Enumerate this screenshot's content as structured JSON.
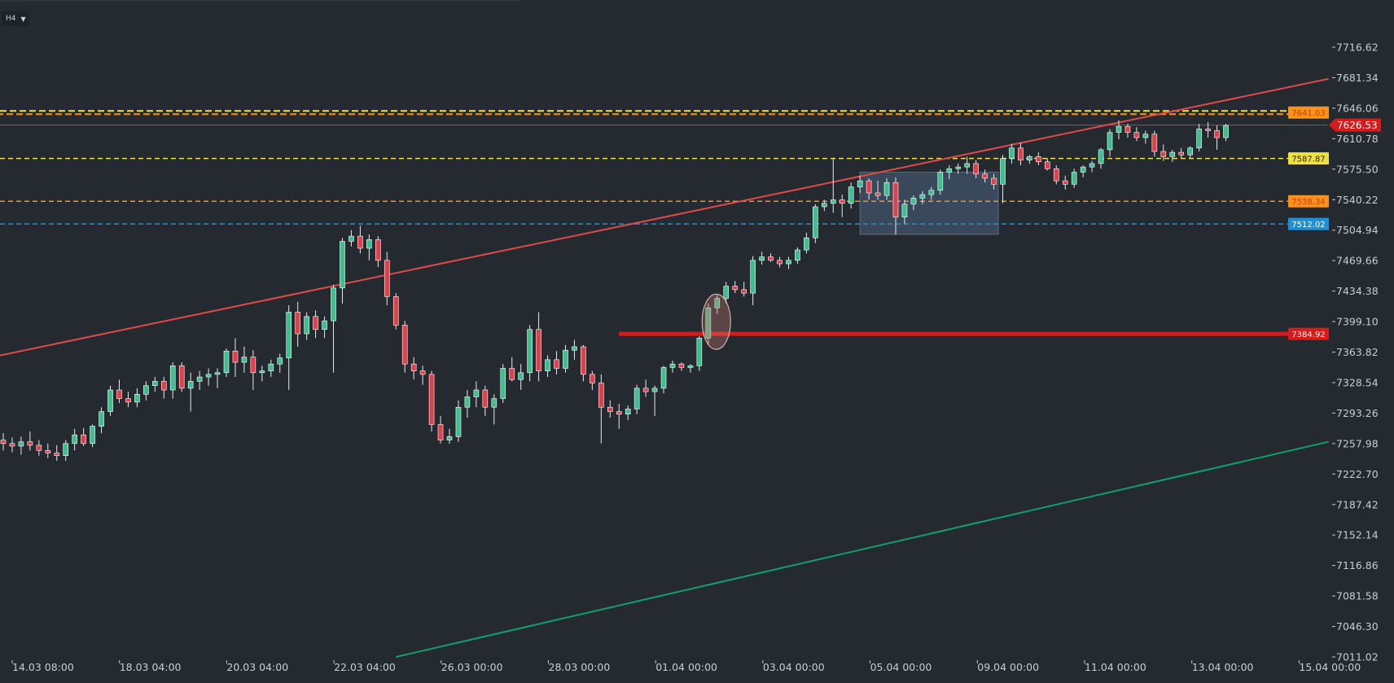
{
  "toolbar": {
    "timeframe": "H4"
  },
  "colors": {
    "background": "#242a30",
    "bull": "#3fbf8f",
    "bear": "#e0404a",
    "resistance_trend": "#e04a4a",
    "support_trend": "#12a06a",
    "orange": "#f7931a",
    "yellow": "#f0e040",
    "blue": "#1e90d8",
    "red_level": "#d41c1c"
  },
  "chart_data": {
    "type": "candlestick",
    "timeframe": "H4",
    "y_axis": {
      "range": [
        7011.02,
        7735.0
      ],
      "ticks": [
        "7716.62",
        "7681.34",
        "7646.06",
        "7610.78",
        "7575.50",
        "7540.22",
        "7504.94",
        "7469.66",
        "7434.38",
        "7399.10",
        "7363.82",
        "7328.54",
        "7293.26",
        "7257.98",
        "7222.70",
        "7187.42",
        "7152.14",
        "7116.86",
        "7081.58",
        "7046.30",
        "7011.02"
      ]
    },
    "x_axis": {
      "ticks": [
        "14.03 08:00",
        "18.03 04:00",
        "20.03 04:00",
        "22.03 04:00",
        "26.03 00:00",
        "28.03 00:00",
        "01.04 00:00",
        "03.04 00:00",
        "05.04 00:00",
        "09.04 00:00",
        "11.04 00:00",
        "13.04 00:00",
        "15.04 00:00"
      ]
    },
    "current_price": "7626.53",
    "levels": [
      {
        "label": "7641.03",
        "value": 7641.03,
        "color": "#f7931a",
        "style": "dashed-double"
      },
      {
        "label": "7587.87",
        "value": 7587.87,
        "color": "#f0e040",
        "style": "dashed"
      },
      {
        "label": "7538.34",
        "value": 7538.34,
        "color": "#f7931a",
        "style": "dashed"
      },
      {
        "label": "7512.02",
        "value": 7512.02,
        "color": "#1e90d8",
        "style": "dashed"
      },
      {
        "label": "7384.92",
        "value": 7384.92,
        "color": "#d41c1c",
        "style": "solid-thick",
        "from_bar": 69
      }
    ],
    "trendlines": [
      {
        "name": "resistance",
        "color": "#e04a4a",
        "from": [
          -5,
          7350
        ],
        "to": [
          148.5,
          7680
        ]
      },
      {
        "name": "support",
        "color": "#12a06a",
        "from": [
          44,
          7011.02
        ],
        "to": [
          148.5,
          7260
        ]
      }
    ],
    "candles": [
      [
        7262,
        7270,
        7250,
        7258
      ],
      [
        7258,
        7265,
        7248,
        7255
      ],
      [
        7255,
        7266,
        7245,
        7260
      ],
      [
        7260,
        7272,
        7250,
        7256
      ],
      [
        7256,
        7262,
        7244,
        7250
      ],
      [
        7250,
        7258,
        7241,
        7247
      ],
      [
        7247,
        7256,
        7238,
        7244
      ],
      [
        7244,
        7262,
        7238,
        7258
      ],
      [
        7258,
        7275,
        7250,
        7268
      ],
      [
        7268,
        7276,
        7255,
        7258
      ],
      [
        7258,
        7280,
        7254,
        7278
      ],
      [
        7278,
        7300,
        7270,
        7295
      ],
      [
        7295,
        7325,
        7290,
        7320
      ],
      [
        7320,
        7332,
        7305,
        7310
      ],
      [
        7310,
        7318,
        7300,
        7306
      ],
      [
        7306,
        7322,
        7300,
        7315
      ],
      [
        7315,
        7330,
        7308,
        7325
      ],
      [
        7325,
        7335,
        7318,
        7330
      ],
      [
        7330,
        7335,
        7310,
        7320
      ],
      [
        7320,
        7352,
        7310,
        7348
      ],
      [
        7348,
        7352,
        7318,
        7322
      ],
      [
        7322,
        7340,
        7295,
        7330
      ],
      [
        7330,
        7342,
        7320,
        7335
      ],
      [
        7335,
        7345,
        7325,
        7338
      ],
      [
        7338,
        7345,
        7322,
        7340
      ],
      [
        7340,
        7368,
        7335,
        7365
      ],
      [
        7365,
        7380,
        7335,
        7352
      ],
      [
        7352,
        7370,
        7340,
        7358
      ],
      [
        7358,
        7366,
        7320,
        7340
      ],
      [
        7340,
        7348,
        7330,
        7342
      ],
      [
        7342,
        7355,
        7335,
        7350
      ],
      [
        7350,
        7362,
        7340,
        7357
      ],
      [
        7357,
        7418,
        7320,
        7410
      ],
      [
        7410,
        7422,
        7370,
        7385
      ],
      [
        7385,
        7410,
        7378,
        7405
      ],
      [
        7405,
        7412,
        7380,
        7390
      ],
      [
        7390,
        7405,
        7380,
        7400
      ],
      [
        7400,
        7442,
        7340,
        7438
      ],
      [
        7438,
        7496,
        7420,
        7492
      ],
      [
        7492,
        7505,
        7486,
        7498
      ],
      [
        7498,
        7510,
        7478,
        7484
      ],
      [
        7484,
        7500,
        7470,
        7494
      ],
      [
        7494,
        7498,
        7462,
        7470
      ],
      [
        7470,
        7480,
        7418,
        7428
      ],
      [
        7428,
        7432,
        7390,
        7395
      ],
      [
        7395,
        7400,
        7340,
        7350
      ],
      [
        7350,
        7358,
        7332,
        7342
      ],
      [
        7342,
        7348,
        7326,
        7338
      ],
      [
        7338,
        7342,
        7272,
        7280
      ],
      [
        7280,
        7290,
        7258,
        7262
      ],
      [
        7262,
        7275,
        7258,
        7266
      ],
      [
        7266,
        7308,
        7260,
        7300
      ],
      [
        7300,
        7320,
        7288,
        7312
      ],
      [
        7312,
        7330,
        7300,
        7320
      ],
      [
        7320,
        7325,
        7290,
        7300
      ],
      [
        7300,
        7315,
        7280,
        7310
      ],
      [
        7310,
        7350,
        7305,
        7345
      ],
      [
        7345,
        7358,
        7330,
        7332
      ],
      [
        7332,
        7350,
        7320,
        7340
      ],
      [
        7340,
        7395,
        7330,
        7390
      ],
      [
        7390,
        7410,
        7330,
        7342
      ],
      [
        7342,
        7360,
        7335,
        7355
      ],
      [
        7355,
        7365,
        7338,
        7345
      ],
      [
        7345,
        7372,
        7340,
        7366
      ],
      [
        7366,
        7378,
        7355,
        7370
      ],
      [
        7370,
        7372,
        7330,
        7338
      ],
      [
        7338,
        7342,
        7320,
        7328
      ],
      [
        7328,
        7338,
        7258,
        7300
      ],
      [
        7300,
        7308,
        7288,
        7295
      ],
      [
        7295,
        7304,
        7275,
        7292
      ],
      [
        7292,
        7302,
        7285,
        7298
      ],
      [
        7298,
        7326,
        7292,
        7322
      ],
      [
        7322,
        7332,
        7312,
        7318
      ],
      [
        7318,
        7325,
        7290,
        7322
      ],
      [
        7322,
        7348,
        7316,
        7346
      ],
      [
        7346,
        7354,
        7340,
        7350
      ],
      [
        7350,
        7352,
        7342,
        7346
      ],
      [
        7346,
        7350,
        7340,
        7348
      ],
      [
        7348,
        7382,
        7342,
        7380
      ],
      [
        7380,
        7420,
        7372,
        7415
      ],
      [
        7415,
        7430,
        7408,
        7426
      ],
      [
        7426,
        7445,
        7420,
        7440
      ],
      [
        7440,
        7446,
        7432,
        7436
      ],
      [
        7436,
        7445,
        7428,
        7432
      ],
      [
        7432,
        7475,
        7418,
        7470
      ],
      [
        7470,
        7480,
        7465,
        7474
      ],
      [
        7474,
        7478,
        7468,
        7470
      ],
      [
        7470,
        7474,
        7462,
        7466
      ],
      [
        7466,
        7474,
        7460,
        7470
      ],
      [
        7470,
        7485,
        7466,
        7482
      ],
      [
        7482,
        7502,
        7478,
        7496
      ],
      [
        7496,
        7535,
        7490,
        7532
      ],
      [
        7532,
        7540,
        7527,
        7536
      ],
      [
        7536,
        7588,
        7525,
        7540
      ],
      [
        7540,
        7546,
        7520,
        7536
      ],
      [
        7536,
        7560,
        7530,
        7555
      ],
      [
        7555,
        7568,
        7548,
        7562
      ],
      [
        7562,
        7565,
        7540,
        7548
      ],
      [
        7548,
        7562,
        7540,
        7545
      ],
      [
        7545,
        7565,
        7540,
        7560
      ],
      [
        7560,
        7566,
        7500,
        7520
      ],
      [
        7520,
        7540,
        7512,
        7535
      ],
      [
        7535,
        7545,
        7528,
        7542
      ],
      [
        7542,
        7550,
        7535,
        7546
      ],
      [
        7546,
        7555,
        7540,
        7551
      ],
      [
        7551,
        7575,
        7546,
        7572
      ],
      [
        7572,
        7580,
        7564,
        7576
      ],
      [
        7576,
        7582,
        7570,
        7578
      ],
      [
        7578,
        7590,
        7570,
        7582
      ],
      [
        7582,
        7586,
        7565,
        7570
      ],
      [
        7570,
        7575,
        7560,
        7565
      ],
      [
        7565,
        7570,
        7552,
        7558
      ],
      [
        7558,
        7592,
        7536,
        7588
      ],
      [
        7588,
        7605,
        7582,
        7600
      ],
      [
        7600,
        7606,
        7580,
        7586
      ],
      [
        7586,
        7592,
        7582,
        7590
      ],
      [
        7590,
        7595,
        7580,
        7584
      ],
      [
        7584,
        7588,
        7574,
        7576
      ],
      [
        7576,
        7580,
        7558,
        7562
      ],
      [
        7562,
        7568,
        7552,
        7558
      ],
      [
        7558,
        7576,
        7554,
        7572
      ],
      [
        7572,
        7580,
        7566,
        7578
      ],
      [
        7578,
        7585,
        7572,
        7582
      ],
      [
        7582,
        7600,
        7576,
        7598
      ],
      [
        7598,
        7622,
        7590,
        7618
      ],
      [
        7618,
        7632,
        7610,
        7625
      ],
      [
        7625,
        7628,
        7612,
        7618
      ],
      [
        7618,
        7624,
        7608,
        7612
      ],
      [
        7612,
        7620,
        7605,
        7616
      ],
      [
        7616,
        7620,
        7590,
        7596
      ],
      [
        7596,
        7604,
        7585,
        7590
      ],
      [
        7590,
        7598,
        7584,
        7595
      ],
      [
        7595,
        7600,
        7588,
        7592
      ],
      [
        7592,
        7602,
        7588,
        7600
      ],
      [
        7600,
        7628,
        7596,
        7622
      ],
      [
        7622,
        7630,
        7612,
        7620
      ],
      [
        7620,
        7626,
        7598,
        7612
      ],
      [
        7612,
        7628,
        7608,
        7626
      ]
    ],
    "annotations": [
      {
        "type": "rectangle",
        "name": "consolidation-box",
        "x_bars": [
          96,
          111.5
        ],
        "y_values": [
          7500,
          7572
        ]
      },
      {
        "type": "ellipse",
        "name": "breakout-ellipse",
        "center_bar": 79.9,
        "center_value": 7399,
        "rx_bars": 1.6,
        "ry_value": 32
      }
    ]
  }
}
